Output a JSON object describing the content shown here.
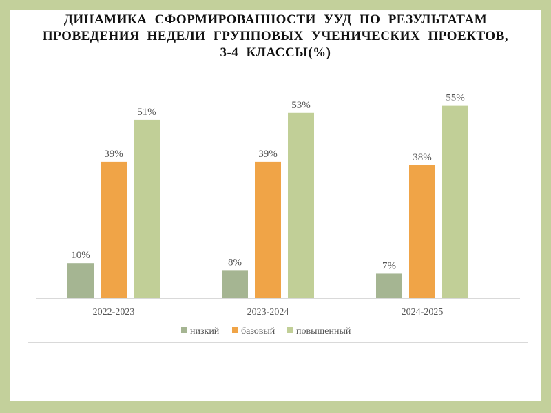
{
  "chart_data": {
    "type": "bar",
    "title_lines": [
      "ДИНАМИКА  СФОРМИРОВАННОСТИ  УУД   ПО  РЕЗУЛЬТАТАМ",
      "ПРОВЕДЕНИЯ  НЕДЕЛИ  ГРУППОВЫХ  УЧЕНИЧЕСКИХ  ПРОЕКТОВ,",
      "3-4  КЛАССЫ(%)"
    ],
    "categories": [
      "2022-2023",
      "2023-2024",
      "2024-2025"
    ],
    "series": [
      {
        "name": "низкий",
        "values": [
          10,
          8,
          7
        ],
        "color": "#a5b592"
      },
      {
        "name": "базовый",
        "values": [
          39,
          39,
          38
        ],
        "color": "#f0a447"
      },
      {
        "name": "повышенный",
        "values": [
          51,
          53,
          55
        ],
        "color": "#c1cf97"
      }
    ],
    "value_suffix": "%",
    "ylim": [
      0,
      60
    ],
    "grid": false,
    "legend_position": "bottom"
  }
}
